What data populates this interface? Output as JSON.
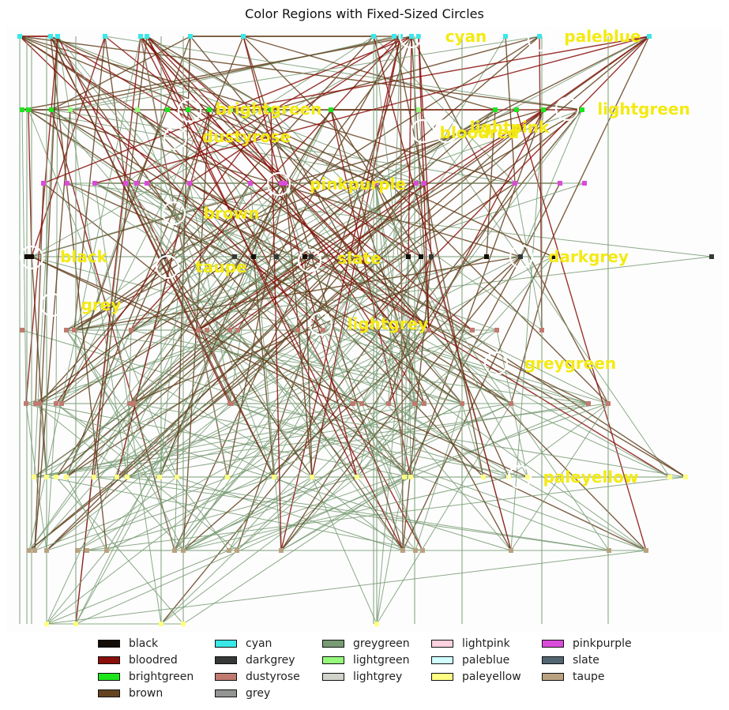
{
  "title": "Color Regions with Fixed-Sized Circles",
  "colors": {
    "black": "#140c06",
    "bloodred": "#8a0f0a",
    "brightgreen": "#1ce51c",
    "brown": "#654321",
    "cyan": "#3ae8e8",
    "darkgrey": "#363737",
    "dustyrose": "#c07a70",
    "grey": "#929591",
    "greygreen": "#789b73",
    "lightgreen": "#96f97b",
    "lightgrey": "#d0d4ca",
    "lightpink": "#ffd1df",
    "paleblue": "#d0fefe",
    "paleyellow": "#ffff84",
    "pinkpurple": "#db4bda",
    "slate": "#516572",
    "taupe": "#b9a281",
    "label": "#f4ea12",
    "circle": "#ffffff"
  },
  "regions": [
    "cyan",
    "paleblue",
    "brightgreen",
    "lightgreen",
    "lightpink",
    "bloodred",
    "dustyrose",
    "pinkpurple",
    "brown",
    "black",
    "taupe",
    "slate",
    "darkgrey",
    "grey",
    "lightgrey",
    "greygreen",
    "paleyellow"
  ],
  "legend": [
    [
      "black",
      "bloodred",
      "brightgreen",
      "brown"
    ],
    [
      "cyan",
      "darkgrey",
      "dustyrose",
      "grey"
    ],
    [
      "greygreen",
      "lightgreen",
      "lightgrey"
    ],
    [
      "lightpink",
      "paleblue",
      "paleyellow"
    ],
    [
      "pinkpurple",
      "slate",
      "taupe"
    ]
  ]
}
